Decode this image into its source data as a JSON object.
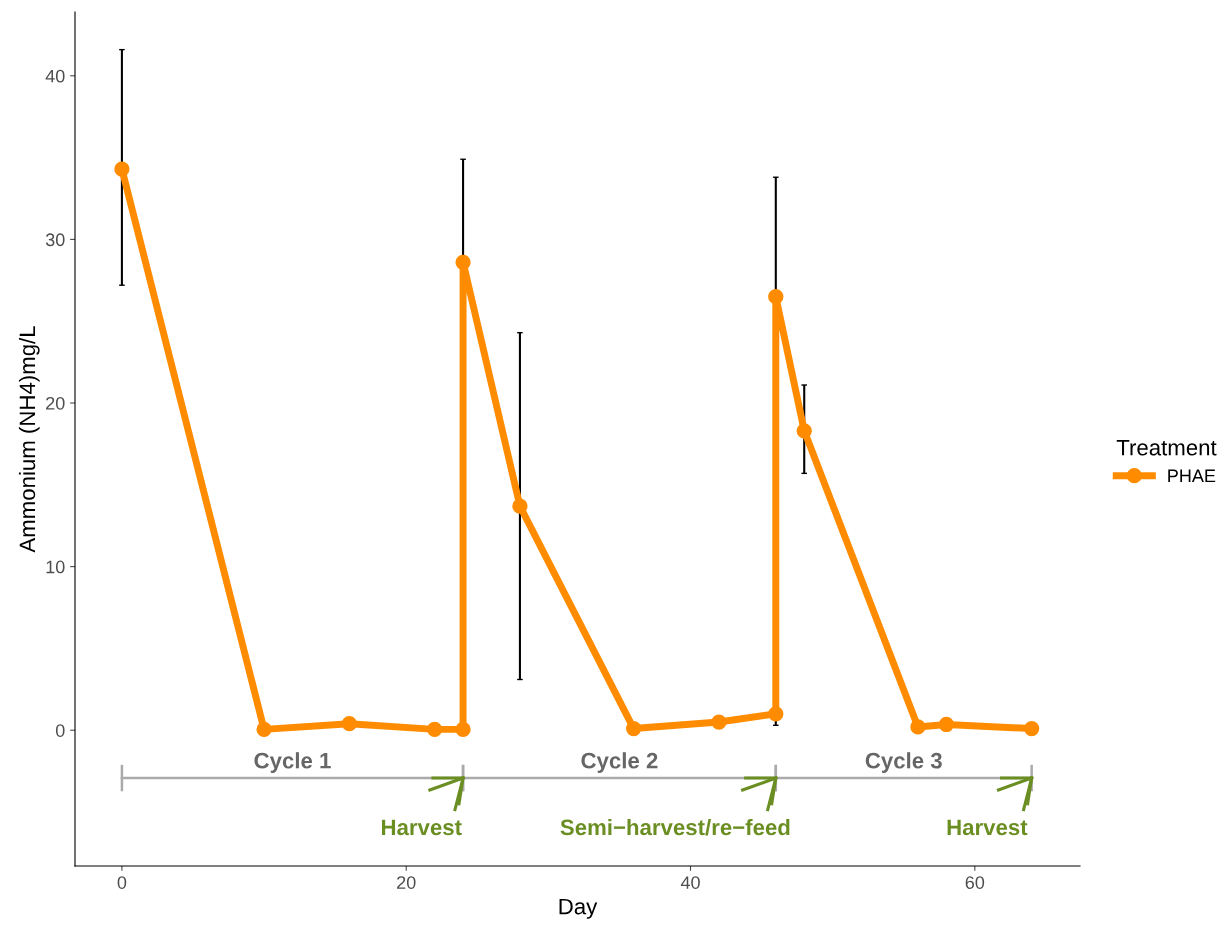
{
  "chart_data": {
    "type": "line",
    "xlabel": "Day",
    "ylabel": "Ammonium (NH4)mg/L",
    "legend_title": "Treatment",
    "legend": "right",
    "grid": false,
    "marker": "circle",
    "line_style": "solid",
    "xlim": [
      -3.3,
      67.4
    ],
    "ylim": [
      -8.3,
      43.9
    ],
    "xticks": [
      0,
      20,
      40,
      60
    ],
    "yticks": [
      0,
      10,
      20,
      30,
      40
    ],
    "series": [
      {
        "name": "PHAE",
        "color": "#ff8c00",
        "x": [
          0,
          10,
          16,
          22,
          24,
          24,
          28,
          36,
          42,
          46,
          46,
          48,
          56,
          58,
          64
        ],
        "values": [
          34.3,
          0.05,
          0.4,
          0.05,
          0.05,
          28.6,
          13.7,
          0.1,
          0.5,
          1.0,
          26.5,
          18.3,
          0.2,
          0.35,
          0.1
        ],
        "errors": [
          [
            27.2,
            41.6
          ],
          null,
          null,
          null,
          null,
          [
            22.3,
            34.9
          ],
          [
            3.1,
            24.3
          ],
          null,
          null,
          null,
          [
            0.3,
            33.8
          ],
          [
            15.7,
            21.1
          ],
          null,
          null,
          null
        ]
      }
    ],
    "annotations": [
      "Cycle 1",
      "Cycle 2",
      "Cycle 3",
      "Harvest",
      "Semi−harvest/re−feed",
      "Harvest"
    ]
  }
}
